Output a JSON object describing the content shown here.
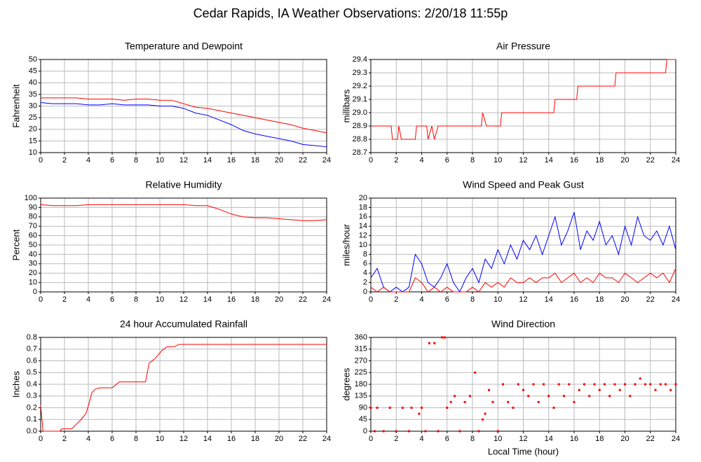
{
  "title": "Cedar Rapids, IA Weather Observations: 2/20/18 11:55p",
  "chart_data": [
    {
      "type": "line",
      "title": "Temperature and Dewpoint",
      "ylabel": "Fahrenheit",
      "x": [
        0,
        1,
        2,
        3,
        4,
        5,
        6,
        7,
        8,
        9,
        10,
        11,
        12,
        13,
        14,
        15,
        16,
        17,
        18,
        19,
        20,
        21,
        22,
        23,
        24
      ],
      "series": [
        {
          "color": "#ff0000",
          "values": [
            33.5,
            33.5,
            33.5,
            33.5,
            33,
            33,
            33,
            32.5,
            33,
            33,
            32.5,
            32.5,
            31,
            29.5,
            29,
            28,
            27,
            26,
            25,
            24,
            23,
            22,
            20.5,
            19.5,
            18.5
          ]
        },
        {
          "color": "#0000ff",
          "values": [
            31.5,
            31,
            31,
            31,
            30.5,
            30.5,
            31,
            30.5,
            30.5,
            30.5,
            30,
            30,
            29,
            27,
            26,
            24,
            22,
            19.5,
            18,
            17,
            16,
            15,
            13.5,
            13,
            12.5
          ]
        }
      ],
      "xlim": [
        0,
        24
      ],
      "xticks": [
        0,
        2,
        4,
        6,
        8,
        10,
        12,
        14,
        16,
        18,
        20,
        22,
        24
      ],
      "ylim": [
        10,
        50
      ],
      "yticks": [
        10,
        15,
        20,
        25,
        30,
        35,
        40,
        45,
        50
      ],
      "grid": true
    },
    {
      "type": "line",
      "title": "Air Pressure",
      "ylabel": "millibars",
      "x": [
        0,
        1.6,
        1.7,
        2.1,
        2.2,
        2.4,
        3.5,
        3.6,
        4.4,
        4.5,
        4.8,
        5,
        5.3,
        8.7,
        8.8,
        9.1,
        10.2,
        10.3,
        14.4,
        14.5,
        16.2,
        16.3,
        19.2,
        19.3,
        23.2,
        23.3,
        24
      ],
      "series": [
        {
          "color": "#ff0000",
          "values": [
            28.9,
            28.9,
            28.8,
            28.8,
            28.9,
            28.8,
            28.8,
            28.9,
            28.9,
            28.8,
            28.9,
            28.8,
            28.9,
            28.9,
            29.0,
            28.9,
            28.9,
            29.0,
            29.0,
            29.1,
            29.1,
            29.2,
            29.2,
            29.3,
            29.3,
            29.4,
            29.4
          ]
        }
      ],
      "xlim": [
        0,
        24
      ],
      "xticks": [
        0,
        2,
        4,
        6,
        8,
        10,
        12,
        14,
        16,
        18,
        20,
        22,
        24
      ],
      "ylim": [
        28.7,
        29.4
      ],
      "yticks": [
        28.7,
        28.8,
        28.9,
        {
          "value": 29,
          "label": "29.0"
        },
        29.1,
        29.2,
        29.3,
        29.4
      ],
      "grid": true
    },
    {
      "type": "line",
      "title": "Relative Humidity",
      "ylabel": "Percent",
      "x": [
        0,
        1,
        2,
        3,
        4,
        5,
        6,
        7,
        8,
        9,
        10,
        11,
        12,
        13,
        14,
        15,
        16,
        17,
        18,
        19,
        20,
        21,
        22,
        23,
        24
      ],
      "series": [
        {
          "color": "#ff0000",
          "values": [
            93,
            92,
            92,
            92,
            93,
            93,
            93,
            93,
            93,
            93,
            93,
            93,
            93,
            92,
            92,
            88,
            83,
            80,
            79,
            79,
            78,
            77,
            76,
            76,
            77
          ]
        }
      ],
      "xlim": [
        0,
        24
      ],
      "xticks": [
        0,
        2,
        4,
        6,
        8,
        10,
        12,
        14,
        16,
        18,
        20,
        22,
        24
      ],
      "ylim": [
        0,
        100
      ],
      "yticks": [
        0,
        10,
        20,
        30,
        40,
        50,
        60,
        70,
        80,
        90,
        100
      ],
      "grid": true
    },
    {
      "type": "line",
      "title": "Wind Speed and Peak Gust",
      "ylabel": "miles/hour",
      "x": [
        0,
        0.5,
        1,
        1.5,
        2,
        2.5,
        3,
        3.5,
        4,
        4.5,
        5,
        5.5,
        6,
        6.5,
        7,
        7.5,
        8,
        8.5,
        9,
        9.5,
        10,
        10.5,
        11,
        11.5,
        12,
        12.5,
        13,
        13.5,
        14,
        14.5,
        15,
        15.5,
        16,
        16.5,
        17,
        17.5,
        18,
        18.5,
        19,
        19.5,
        20,
        20.5,
        21,
        21.5,
        22,
        22.5,
        23,
        23.5,
        24
      ],
      "series": [
        {
          "color": "#0000ff",
          "values": [
            3,
            5,
            1,
            0,
            1,
            0,
            1,
            8,
            6,
            2,
            1,
            3,
            6,
            2,
            0,
            3,
            5,
            2,
            7,
            5,
            9,
            6,
            10,
            7,
            11,
            9,
            12,
            8,
            12,
            16,
            10,
            13,
            17,
            9,
            13,
            11,
            15,
            10,
            12,
            8,
            14,
            10,
            16,
            12,
            11,
            13,
            10,
            14,
            9
          ]
        },
        {
          "color": "#ff0000",
          "values": [
            1,
            0,
            1,
            0,
            0,
            0,
            0,
            3,
            2,
            0,
            1,
            0,
            1,
            0,
            0,
            0,
            1,
            0,
            2,
            1,
            2,
            1,
            3,
            2,
            2,
            3,
            2,
            3,
            3,
            4,
            2,
            3,
            4,
            2,
            3,
            2,
            4,
            3,
            3,
            2,
            4,
            3,
            2,
            3,
            4,
            3,
            4,
            2,
            5
          ]
        }
      ],
      "xlim": [
        0,
        24
      ],
      "xticks": [
        0,
        2,
        4,
        6,
        8,
        10,
        12,
        14,
        16,
        18,
        20,
        22,
        24
      ],
      "ylim": [
        0,
        20
      ],
      "yticks": [
        0,
        2,
        4,
        6,
        8,
        10,
        12,
        14,
        16,
        18,
        20
      ],
      "grid": true
    },
    {
      "type": "line",
      "title": "24 hour Accumulated Rainfall",
      "ylabel": "Inches",
      "x": [
        0,
        0.2,
        1.6,
        1.8,
        2.6,
        3,
        3.4,
        3.8,
        4.1,
        4.3,
        4.6,
        5,
        6,
        6.6,
        8.8,
        9.1,
        9.6,
        10.2,
        10.6,
        11.2,
        11.6,
        24
      ],
      "series": [
        {
          "color": "#ff0000",
          "values": [
            0.22,
            0,
            0,
            0.02,
            0.02,
            0.06,
            0.1,
            0.15,
            0.25,
            0.33,
            0.36,
            0.37,
            0.37,
            0.42,
            0.42,
            0.58,
            0.62,
            0.69,
            0.72,
            0.72,
            0.74,
            0.74
          ]
        }
      ],
      "xlim": [
        0,
        24
      ],
      "xticks": [
        0,
        2,
        4,
        6,
        8,
        10,
        12,
        14,
        16,
        18,
        20,
        22,
        24
      ],
      "ylim": [
        0,
        0.8
      ],
      "yticks": [
        {
          "value": 0,
          "label": "0.0"
        },
        0.1,
        0.2,
        0.3,
        0.4,
        0.5,
        0.6,
        0.7,
        0.8
      ],
      "grid": true
    },
    {
      "type": "scatter",
      "title": "Wind Direction",
      "ylabel": "degrees",
      "xlabel": "Local Time (hour)",
      "x": [
        0,
        0.3,
        0.5,
        1,
        1.5,
        2,
        2.5,
        3,
        3.2,
        3.8,
        4,
        4.3,
        4.6,
        5,
        5.3,
        5.6,
        5.8,
        6,
        6.3,
        6.6,
        7,
        7.4,
        7.8,
        8.2,
        8.5,
        8.8,
        9,
        9.3,
        9.6,
        10,
        10.4,
        10.8,
        11.2,
        11.6,
        12,
        12.4,
        12.8,
        13.2,
        13.6,
        14,
        14.4,
        14.8,
        15.2,
        15.6,
        16,
        16.4,
        16.8,
        17.2,
        17.6,
        18,
        18.4,
        18.8,
        19.2,
        19.6,
        20,
        20.4,
        20.8,
        21.2,
        21.6,
        22,
        22.4,
        22.8,
        23.2,
        23.6,
        24
      ],
      "series": [
        {
          "color": "#ff0000",
          "values": [
            90,
            0,
            90,
            0,
            90,
            0,
            90,
            0,
            90,
            67,
            90,
            0,
            338,
            338,
            0,
            360,
            360,
            90,
            112,
            135,
            0,
            112,
            135,
            225,
            0,
            45,
            67,
            158,
            112,
            0,
            180,
            112,
            90,
            180,
            158,
            135,
            180,
            112,
            180,
            135,
            90,
            180,
            135,
            180,
            112,
            158,
            180,
            135,
            180,
            158,
            180,
            135,
            180,
            158,
            180,
            135,
            180,
            202,
            180,
            180,
            158,
            180,
            180,
            158,
            180
          ]
        }
      ],
      "xlim": [
        0,
        24
      ],
      "xticks": [
        0,
        2,
        4,
        6,
        8,
        10,
        12,
        14,
        16,
        18,
        20,
        22,
        24
      ],
      "ylim": [
        0,
        360
      ],
      "yticks": [
        0,
        45,
        90,
        135,
        180,
        225,
        270,
        315,
        360
      ],
      "grid": true
    }
  ]
}
